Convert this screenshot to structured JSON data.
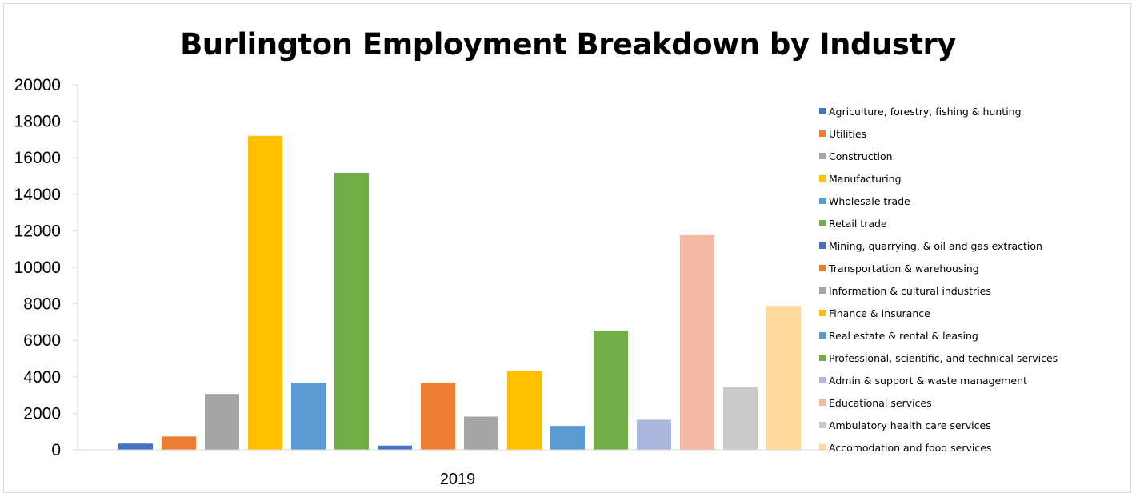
{
  "chart_data": {
    "type": "bar",
    "title": "Burlington Employment Breakdown by Industry",
    "categories": [
      "2019"
    ],
    "xlabel": "",
    "ylabel": "",
    "ylim": [
      0,
      20000
    ],
    "yticks": [
      0,
      2000,
      4000,
      6000,
      8000,
      10000,
      12000,
      14000,
      16000,
      18000,
      20000
    ],
    "grid": false,
    "legend_position": "right",
    "series": [
      {
        "name": "Agriculture, forestry, fishing & hunting",
        "color": "#4472c4",
        "values": [
          340
        ]
      },
      {
        "name": "Utilities",
        "color": "#ed7d31",
        "values": [
          730
        ]
      },
      {
        "name": "Construction",
        "color": "#a5a5a5",
        "values": [
          3060
        ]
      },
      {
        "name": "Manufacturing",
        "color": "#ffc000",
        "values": [
          17200
        ]
      },
      {
        "name": "Wholesale trade",
        "color": "#5b9bd5",
        "values": [
          3680
        ]
      },
      {
        "name": "Retail trade",
        "color": "#70ad47",
        "values": [
          15180
        ]
      },
      {
        "name": "Mining, quarrying, & oil and gas extraction",
        "color": "#4472c4",
        "values": [
          230
        ]
      },
      {
        "name": "Transportation & warehousing",
        "color": "#ed7d31",
        "values": [
          3680
        ]
      },
      {
        "name": "Information & cultural industries",
        "color": "#a5a5a5",
        "values": [
          1820
        ]
      },
      {
        "name": "Finance & Insurance",
        "color": "#ffc000",
        "values": [
          4300
        ]
      },
      {
        "name": "Real estate & rental & leasing",
        "color": "#5b9bd5",
        "values": [
          1310
        ]
      },
      {
        "name": "Professional, scientific, and technical services",
        "color": "#70ad47",
        "values": [
          6530
        ]
      },
      {
        "name": "Admin & support & waste management",
        "color": "#a9b8dc",
        "values": [
          1650
        ]
      },
      {
        "name": "Educational services",
        "color": "#f4b9a2",
        "values": [
          11760
        ]
      },
      {
        "name": "Ambulatory health care services",
        "color": "#c9c9c9",
        "values": [
          3440
        ]
      },
      {
        "name": "Accomodation and food services",
        "color": "#ffd99a",
        "values": [
          7890
        ]
      }
    ]
  }
}
